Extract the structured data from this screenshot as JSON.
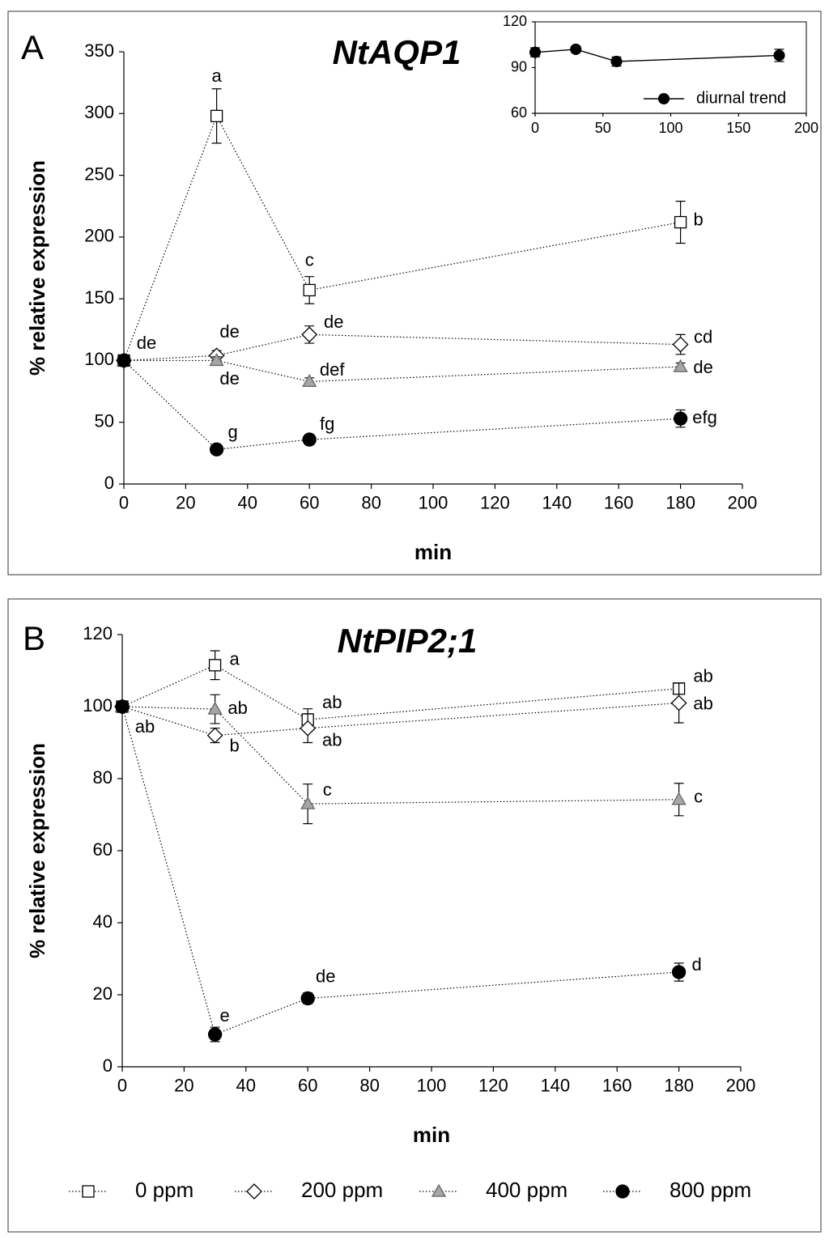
{
  "chart_data": [
    {
      "type": "line",
      "panel": "A",
      "title": "NtAQP1",
      "ylabel": "% relative expression",
      "xlabel": "min",
      "x": [
        0,
        30,
        60,
        180
      ],
      "xlim": [
        0,
        200
      ],
      "xticks": [
        0,
        20,
        40,
        60,
        80,
        100,
        120,
        140,
        160,
        180,
        200
      ],
      "ylim": [
        0,
        350
      ],
      "yticks": [
        0,
        50,
        100,
        150,
        200,
        250,
        300,
        350
      ],
      "shared_letter": "de",
      "series": [
        {
          "marker": "square",
          "color": "#ffffff",
          "values": [
            100,
            298,
            157,
            212
          ],
          "errors": [
            0,
            22,
            11,
            17
          ],
          "letters": [
            null,
            "a",
            "c",
            "b"
          ]
        },
        {
          "marker": "diamond",
          "color": "#ffffff",
          "values": [
            100,
            104,
            121,
            113
          ],
          "errors": [
            0,
            4,
            7,
            8
          ],
          "letters": [
            null,
            "de",
            "de",
            "cd"
          ]
        },
        {
          "marker": "triangle",
          "color": "#a6a6a6",
          "values": [
            100,
            100,
            83,
            95
          ],
          "errors": [
            0,
            3,
            3,
            3
          ],
          "letters": [
            null,
            "de",
            "def",
            "de"
          ]
        },
        {
          "marker": "circle",
          "color": "#000000",
          "values": [
            100,
            28,
            36,
            53
          ],
          "errors": [
            0,
            2,
            4,
            7
          ],
          "letters": [
            null,
            "g",
            "fg",
            "efg"
          ]
        }
      ]
    },
    {
      "type": "line",
      "x": [
        0,
        30,
        60,
        180
      ],
      "xlim": [
        0,
        200
      ],
      "xticks": [
        0,
        50,
        100,
        150,
        200
      ],
      "ylim": [
        60,
        120
      ],
      "yticks": [
        60,
        90,
        120
      ],
      "series": [
        {
          "name": "diurnal trend",
          "marker": "circle",
          "color": "#000000",
          "values": [
            100,
            102,
            94,
            98
          ],
          "errors": [
            3,
            2,
            3,
            4
          ]
        }
      ]
    },
    {
      "type": "line",
      "panel": "B",
      "title": "NtPIP2;1",
      "ylabel": "% relative expression",
      "xlabel": "min",
      "x": [
        0,
        30,
        60,
        180
      ],
      "xlim": [
        0,
        200
      ],
      "xticks": [
        0,
        20,
        40,
        60,
        80,
        100,
        120,
        140,
        160,
        180,
        200
      ],
      "ylim": [
        0,
        120
      ],
      "yticks": [
        0,
        20,
        40,
        60,
        80,
        100,
        120
      ],
      "shared_letter": "ab",
      "series": [
        {
          "name": "0 ppm",
          "marker": "square",
          "color": "#ffffff",
          "values": [
            100,
            111.5,
            96.4,
            105
          ],
          "errors": [
            0,
            4,
            3,
            1.5
          ],
          "letters": [
            null,
            "a",
            "ab",
            "ab"
          ]
        },
        {
          "name": "200 ppm",
          "marker": "diamond",
          "color": "#ffffff",
          "values": [
            100,
            92,
            94,
            101
          ],
          "errors": [
            0,
            2,
            4,
            5.5
          ],
          "letters": [
            null,
            "b",
            "ab",
            "ab"
          ]
        },
        {
          "name": "400 ppm",
          "marker": "triangle",
          "color": "#a6a6a6",
          "values": [
            100,
            99.3,
            73,
            74.2
          ],
          "errors": [
            0,
            4,
            5.5,
            4.5
          ],
          "letters": [
            null,
            "ab",
            "c",
            "c"
          ]
        },
        {
          "name": "800 ppm",
          "marker": "circle",
          "color": "#000000",
          "values": [
            100,
            9,
            19,
            26.3
          ],
          "errors": [
            0,
            2,
            1.5,
            2.5
          ],
          "letters": [
            null,
            "e",
            "de",
            "d"
          ]
        }
      ]
    }
  ]
}
